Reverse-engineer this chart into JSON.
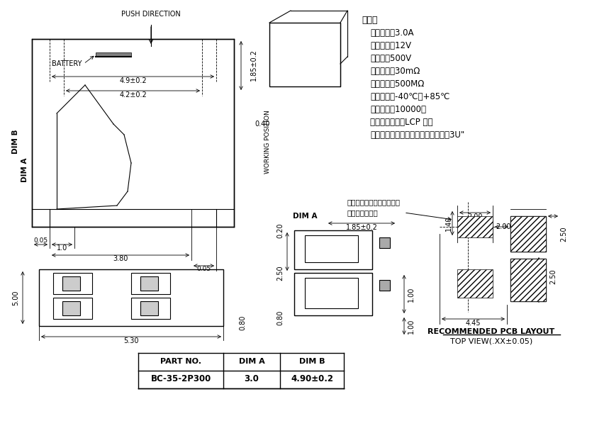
{
  "bg_color": "#ffffff",
  "line_color": "#000000",
  "hatch_color": "#000000",
  "title_font_size": 9,
  "label_font_size": 7.5,
  "small_font_size": 6.5,
  "specs_title": "性能：",
  "specs_lines": [
    "额定电流：3.0A",
    "额定电压：12V",
    "耐电压：500V",
    "接触电阻：30mΩ",
    "绝缘电阻：500MΩ",
    "工作温度：-40℃～+85℃",
    "使用寿命：10000次",
    "塑件（材质）：LCP 黑色",
    "接触点（材质）：铜合金，触点镀金3U\""
  ],
  "table_headers": [
    "PART NO.",
    "DIM A",
    "DIM B"
  ],
  "table_row": [
    "BC-35-2P300",
    "3.0",
    "4.90±0.2"
  ],
  "note_line1": "此固定片仅用于固定产品，",
  "note_line2": "请勿连接电路。",
  "pcb_title": "RECOMMENDED PCB LAYOUT",
  "pcb_subtitle": "TOP VIEW(.XX±0.05)"
}
